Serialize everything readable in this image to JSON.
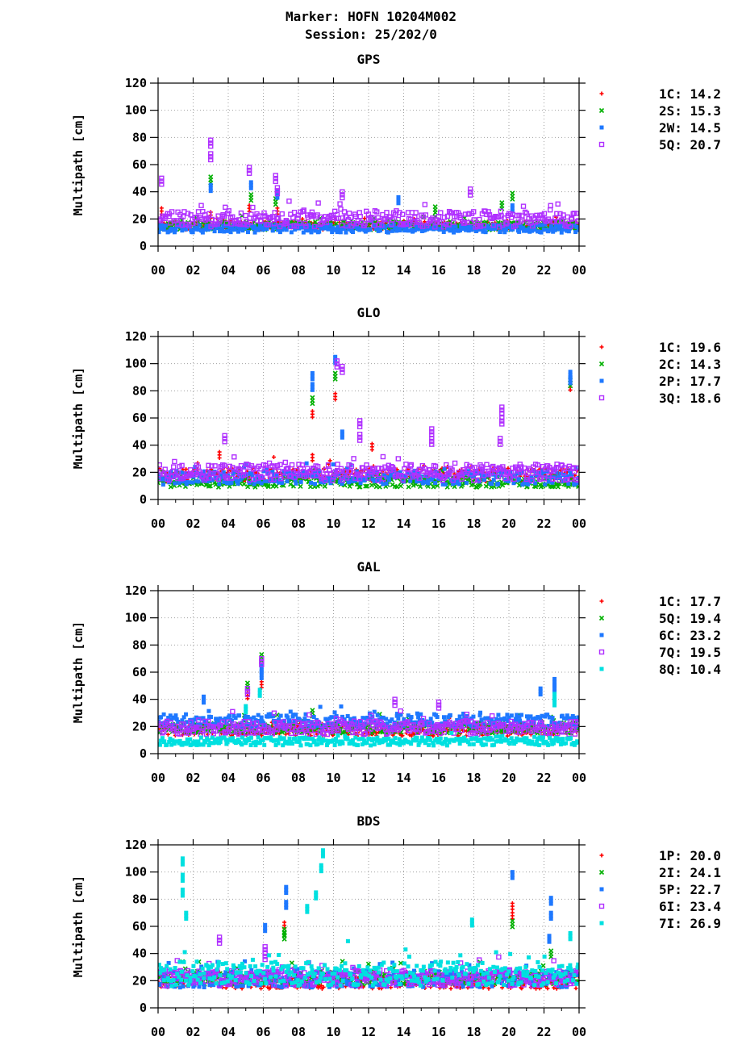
{
  "header": {
    "title": "Marker: HOFN 10204M002",
    "subtitle": "Session: 25/202/0"
  },
  "chart_data": [
    {
      "type": "scatter",
      "title": "GPS",
      "ylabel": "Multipath [cm]",
      "xlabel": "",
      "ylim": [
        0,
        120
      ],
      "xlim": [
        0,
        24
      ],
      "yticks": [
        0,
        20,
        40,
        60,
        80,
        100,
        120
      ],
      "xtick_labels": [
        "00",
        "02",
        "04",
        "06",
        "08",
        "10",
        "12",
        "14",
        "16",
        "18",
        "20",
        "22",
        "00"
      ],
      "grid": true,
      "legend_position": "right",
      "series": [
        {
          "name": "1C",
          "value": "14.2",
          "color": "#ff0000",
          "marker": "plus",
          "base": 15,
          "spread": 3,
          "spikes": [
            [
              0.2,
              28
            ],
            [
              3.0,
              25
            ],
            [
              5.2,
              30
            ],
            [
              6.8,
              28
            ],
            [
              14.6,
              20
            ]
          ]
        },
        {
          "name": "2S",
          "value": "15.3",
          "color": "#00b000",
          "marker": "cross",
          "base": 15,
          "spread": 3,
          "spikes": [
            [
              3.0,
              51
            ],
            [
              5.3,
              38
            ],
            [
              6.7,
              35
            ],
            [
              15.8,
              29
            ],
            [
              19.6,
              32
            ],
            [
              20.2,
              39
            ]
          ]
        },
        {
          "name": "2W",
          "value": "14.5",
          "color": "#1e78ff",
          "marker": "square",
          "base": 13,
          "spread": 3,
          "spikes": [
            [
              3.0,
              45
            ],
            [
              5.3,
              47
            ],
            [
              6.8,
              40
            ],
            [
              13.7,
              36
            ],
            [
              20.2,
              30
            ]
          ]
        },
        {
          "name": "5Q",
          "value": "20.7",
          "color": "#b030ff",
          "marker": "open-square",
          "base": 20,
          "spread": 6,
          "spikes": [
            [
              0.2,
              50
            ],
            [
              3.0,
              78
            ],
            [
              3.0,
              68
            ],
            [
              5.2,
              58
            ],
            [
              6.7,
              52
            ],
            [
              6.8,
              43
            ],
            [
              10.5,
              40
            ],
            [
              17.8,
              42
            ]
          ]
        }
      ]
    },
    {
      "type": "scatter",
      "title": "GLO",
      "ylabel": "Multipath [cm]",
      "xlabel": "",
      "ylim": [
        0,
        120
      ],
      "xlim": [
        0,
        24
      ],
      "yticks": [
        0,
        20,
        40,
        60,
        80,
        100,
        120
      ],
      "xtick_labels": [
        "00",
        "02",
        "04",
        "06",
        "08",
        "10",
        "12",
        "14",
        "16",
        "18",
        "20",
        "22",
        "00"
      ],
      "grid": true,
      "legend_position": "right",
      "series": [
        {
          "name": "1C",
          "value": "19.6",
          "color": "#ff0000",
          "marker": "plus",
          "base": 18,
          "spread": 5,
          "spikes": [
            [
              3.5,
              35
            ],
            [
              8.8,
              65
            ],
            [
              8.8,
              33
            ],
            [
              10.1,
              78
            ],
            [
              12.2,
              41
            ],
            [
              23.5,
              85
            ]
          ]
        },
        {
          "name": "2C",
          "value": "14.3",
          "color": "#00b000",
          "marker": "cross",
          "base": 13,
          "spread": 4,
          "spikes": [
            [
              8.8,
              75
            ],
            [
              10.1,
              93
            ],
            [
              23.5,
              88
            ]
          ]
        },
        {
          "name": "2P",
          "value": "17.7",
          "color": "#1e78ff",
          "marker": "square",
          "base": 16,
          "spread": 5,
          "spikes": [
            [
              8.8,
              93
            ],
            [
              8.8,
              85
            ],
            [
              10.1,
              105
            ],
            [
              10.5,
              50
            ],
            [
              23.5,
              94
            ],
            [
              23.5,
              90
            ]
          ]
        },
        {
          "name": "3Q",
          "value": "18.6",
          "color": "#b030ff",
          "marker": "open-square",
          "base": 20,
          "spread": 6,
          "spikes": [
            [
              3.8,
              47
            ],
            [
              10.2,
              102
            ],
            [
              10.5,
              98
            ],
            [
              11.5,
              58
            ],
            [
              11.5,
              48
            ],
            [
              15.6,
              52
            ],
            [
              15.6,
              45
            ],
            [
              19.6,
              68
            ],
            [
              19.6,
              60
            ],
            [
              19.5,
              45
            ]
          ]
        }
      ]
    },
    {
      "type": "scatter",
      "title": "GAL",
      "ylabel": "Multipath [cm]",
      "xlabel": "",
      "ylim": [
        0,
        120
      ],
      "xlim": [
        0,
        24
      ],
      "yticks": [
        0,
        20,
        40,
        60,
        80,
        100,
        120
      ],
      "xtick_labels": [
        "00",
        "02",
        "04",
        "06",
        "08",
        "10",
        "12",
        "14",
        "16",
        "18",
        "20",
        "22",
        "00"
      ],
      "grid": true,
      "legend_position": "right",
      "series": [
        {
          "name": "1C",
          "value": "17.7",
          "color": "#ff0000",
          "marker": "plus",
          "base": 17,
          "spread": 4,
          "spikes": [
            [
              5.9,
              53
            ],
            [
              5.1,
              45
            ]
          ]
        },
        {
          "name": "5Q",
          "value": "19.4",
          "color": "#00b000",
          "marker": "cross",
          "base": 19,
          "spread": 4,
          "spikes": [
            [
              5.9,
              73
            ],
            [
              5.1,
              52
            ],
            [
              8.8,
              32
            ]
          ]
        },
        {
          "name": "6C",
          "value": "23.2",
          "color": "#1e78ff",
          "marker": "square",
          "base": 24,
          "spread": 5,
          "spikes": [
            [
              5.9,
              65
            ],
            [
              5.9,
              60
            ],
            [
              2.6,
              42
            ],
            [
              21.8,
              48
            ],
            [
              22.6,
              55
            ],
            [
              22.6,
              50
            ]
          ]
        },
        {
          "name": "7Q",
          "value": "19.5",
          "color": "#b030ff",
          "marker": "open-square",
          "base": 19,
          "spread": 5,
          "spikes": [
            [
              5.9,
              70
            ],
            [
              5.1,
              48
            ],
            [
              13.5,
              40
            ],
            [
              16.0,
              38
            ]
          ]
        },
        {
          "name": "8Q",
          "value": "10.4",
          "color": "#00e0e0",
          "marker": "square",
          "base": 9,
          "spread": 3,
          "spikes": [
            [
              5.8,
              47
            ],
            [
              22.6,
              44
            ],
            [
              22.6,
              40
            ],
            [
              5.0,
              35
            ]
          ]
        }
      ]
    },
    {
      "type": "scatter",
      "title": "BDS",
      "ylabel": "Multipath [cm]",
      "xlabel": "",
      "ylim": [
        0,
        120
      ],
      "xlim": [
        0,
        24
      ],
      "yticks": [
        0,
        20,
        40,
        60,
        80,
        100,
        120
      ],
      "xtick_labels": [
        "00",
        "02",
        "04",
        "06",
        "08",
        "10",
        "12",
        "14",
        "16",
        "18",
        "20",
        "22",
        "00"
      ],
      "grid": true,
      "legend_position": "right",
      "series": [
        {
          "name": "1P",
          "value": "20.0",
          "color": "#ff0000",
          "marker": "plus",
          "base": 19,
          "spread": 5,
          "spikes": [
            [
              20.2,
              77
            ],
            [
              20.2,
              70
            ],
            [
              7.2,
              63
            ]
          ]
        },
        {
          "name": "2I",
          "value": "24.1",
          "color": "#00b000",
          "marker": "cross",
          "base": 22,
          "spread": 5,
          "spikes": [
            [
              7.2,
              58
            ],
            [
              7.2,
              55
            ],
            [
              20.2,
              64
            ],
            [
              22.4,
              42
            ]
          ]
        },
        {
          "name": "5P",
          "value": "22.7",
          "color": "#1e78ff",
          "marker": "square",
          "base": 21,
          "spread": 6,
          "spikes": [
            [
              6.1,
              61
            ],
            [
              7.3,
              89
            ],
            [
              7.3,
              78
            ],
            [
              20.2,
              100
            ],
            [
              22.4,
              81
            ],
            [
              22.4,
              70
            ],
            [
              22.3,
              53
            ]
          ]
        },
        {
          "name": "6I",
          "value": "23.4",
          "color": "#b030ff",
          "marker": "open-square",
          "base": 22,
          "spread": 6,
          "spikes": [
            [
              6.1,
              45
            ],
            [
              6.1,
              40
            ],
            [
              3.5,
              52
            ]
          ]
        },
        {
          "name": "7I",
          "value": "26.9",
          "color": "#00e0e0",
          "marker": "square",
          "base": 25,
          "spread": 9,
          "spikes": [
            [
              1.4,
              110
            ],
            [
              1.4,
              98
            ],
            [
              1.4,
              87
            ],
            [
              1.6,
              70
            ],
            [
              9.4,
              116
            ],
            [
              9.3,
              105
            ],
            [
              9.0,
              85
            ],
            [
              8.5,
              75
            ],
            [
              17.9,
              65
            ],
            [
              23.5,
              55
            ]
          ]
        }
      ]
    }
  ]
}
